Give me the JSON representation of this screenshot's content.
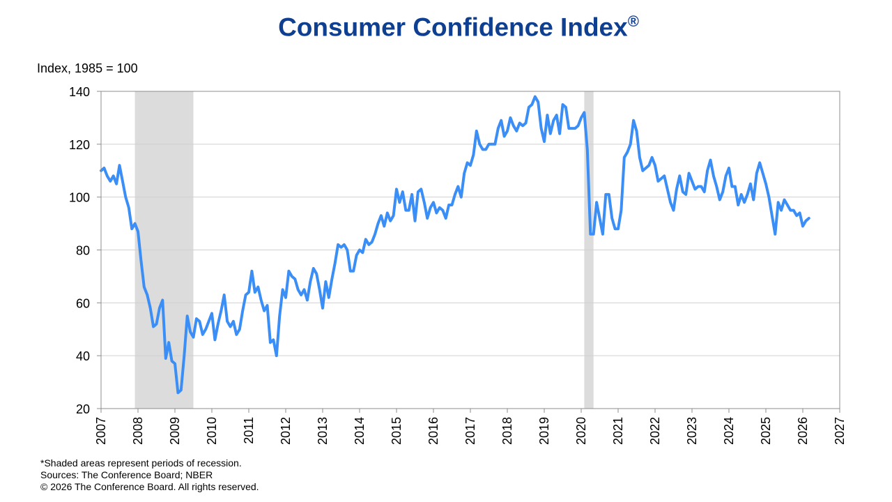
{
  "title": "Consumer Confidence Index",
  "title_mark": "®",
  "notes": [
    "*Shaded areas represent periods of recession.",
    "Sources:  The Conference Board;  NBER",
    "© 2026 The Conference Board. All rights reserved."
  ],
  "chart_data": {
    "type": "line",
    "title": "Consumer Confidence Index®",
    "ylabel": "Index, 1985 = 100",
    "xlabel": "",
    "xlim": [
      2007,
      2027
    ],
    "ylim": [
      20,
      140
    ],
    "x_ticks": [
      "2007",
      "2008",
      "2009",
      "2010",
      "2011",
      "2012",
      "2013",
      "2014",
      "2015",
      "2016",
      "2017",
      "2018",
      "2019",
      "2020",
      "2021",
      "2022",
      "2023",
      "2024",
      "2025",
      "2026",
      "2027"
    ],
    "y_ticks": [
      20,
      40,
      60,
      80,
      100,
      120,
      140
    ],
    "grid": "horizontal",
    "line_color": "#3a8ef6",
    "recession_color": "#dcdcdc",
    "recessions": [
      {
        "start": "2007-12",
        "end": "2009-06"
      },
      {
        "start": "2020-02",
        "end": "2020-04"
      }
    ],
    "series": [
      {
        "points": [
          [
            "2007-01",
            110
          ],
          [
            "2007-02",
            111
          ],
          [
            "2007-03",
            108
          ],
          [
            "2007-04",
            106
          ],
          [
            "2007-05",
            108
          ],
          [
            "2007-06",
            105
          ],
          [
            "2007-07",
            112
          ],
          [
            "2007-08",
            106
          ],
          [
            "2007-09",
            100
          ],
          [
            "2007-10",
            96
          ],
          [
            "2007-11",
            88
          ],
          [
            "2007-12",
            90
          ],
          [
            "2008-01",
            87
          ],
          [
            "2008-02",
            76
          ],
          [
            "2008-03",
            66
          ],
          [
            "2008-04",
            63
          ],
          [
            "2008-05",
            58
          ],
          [
            "2008-06",
            51
          ],
          [
            "2008-07",
            52
          ],
          [
            "2008-08",
            58
          ],
          [
            "2008-09",
            61
          ],
          [
            "2008-10",
            39
          ],
          [
            "2008-11",
            45
          ],
          [
            "2008-12",
            38
          ],
          [
            "2009-01",
            37
          ],
          [
            "2009-02",
            26
          ],
          [
            "2009-03",
            27
          ],
          [
            "2009-04",
            40
          ],
          [
            "2009-05",
            55
          ],
          [
            "2009-06",
            49
          ],
          [
            "2009-07",
            47
          ],
          [
            "2009-08",
            54
          ],
          [
            "2009-09",
            53
          ],
          [
            "2009-10",
            48
          ],
          [
            "2009-11",
            50
          ],
          [
            "2009-12",
            53
          ],
          [
            "2010-01",
            56
          ],
          [
            "2010-02",
            46
          ],
          [
            "2010-03",
            52
          ],
          [
            "2010-04",
            57
          ],
          [
            "2010-05",
            63
          ],
          [
            "2010-06",
            53
          ],
          [
            "2010-07",
            51
          ],
          [
            "2010-08",
            53
          ],
          [
            "2010-09",
            48
          ],
          [
            "2010-10",
            50
          ],
          [
            "2010-11",
            57
          ],
          [
            "2010-12",
            63
          ],
          [
            "2011-01",
            64
          ],
          [
            "2011-02",
            72
          ],
          [
            "2011-03",
            64
          ],
          [
            "2011-04",
            66
          ],
          [
            "2011-05",
            61
          ],
          [
            "2011-06",
            57
          ],
          [
            "2011-07",
            59
          ],
          [
            "2011-08",
            45
          ],
          [
            "2011-09",
            46
          ],
          [
            "2011-10",
            40
          ],
          [
            "2011-11",
            55
          ],
          [
            "2011-12",
            65
          ],
          [
            "2012-01",
            62
          ],
          [
            "2012-02",
            72
          ],
          [
            "2012-03",
            70
          ],
          [
            "2012-04",
            69
          ],
          [
            "2012-05",
            65
          ],
          [
            "2012-06",
            63
          ],
          [
            "2012-07",
            65
          ],
          [
            "2012-08",
            61
          ],
          [
            "2012-09",
            68
          ],
          [
            "2012-10",
            73
          ],
          [
            "2012-11",
            71
          ],
          [
            "2012-12",
            65
          ],
          [
            "2013-01",
            58
          ],
          [
            "2013-02",
            68
          ],
          [
            "2013-03",
            62
          ],
          [
            "2013-04",
            69
          ],
          [
            "2013-05",
            75
          ],
          [
            "2013-06",
            82
          ],
          [
            "2013-07",
            81
          ],
          [
            "2013-08",
            82
          ],
          [
            "2013-09",
            80
          ],
          [
            "2013-10",
            72
          ],
          [
            "2013-11",
            72
          ],
          [
            "2013-12",
            78
          ],
          [
            "2014-01",
            80
          ],
          [
            "2014-02",
            79
          ],
          [
            "2014-03",
            84
          ],
          [
            "2014-04",
            82
          ],
          [
            "2014-05",
            83
          ],
          [
            "2014-06",
            86
          ],
          [
            "2014-07",
            90
          ],
          [
            "2014-08",
            93
          ],
          [
            "2014-09",
            89
          ],
          [
            "2014-10",
            94
          ],
          [
            "2014-11",
            91
          ],
          [
            "2014-12",
            93
          ],
          [
            "2015-01",
            103
          ],
          [
            "2015-02",
            98
          ],
          [
            "2015-03",
            102
          ],
          [
            "2015-04",
            95
          ],
          [
            "2015-05",
            95
          ],
          [
            "2015-06",
            101
          ],
          [
            "2015-07",
            91
          ],
          [
            "2015-08",
            102
          ],
          [
            "2015-09",
            103
          ],
          [
            "2015-10",
            98
          ],
          [
            "2015-11",
            92
          ],
          [
            "2015-12",
            96
          ],
          [
            "2016-01",
            98
          ],
          [
            "2016-02",
            94
          ],
          [
            "2016-03",
            96
          ],
          [
            "2016-04",
            95
          ],
          [
            "2016-05",
            92
          ],
          [
            "2016-06",
            97
          ],
          [
            "2016-07",
            97
          ],
          [
            "2016-08",
            101
          ],
          [
            "2016-09",
            104
          ],
          [
            "2016-10",
            100
          ],
          [
            "2016-11",
            109
          ],
          [
            "2016-12",
            113
          ],
          [
            "2017-01",
            112
          ],
          [
            "2017-02",
            116
          ],
          [
            "2017-03",
            125
          ],
          [
            "2017-04",
            120
          ],
          [
            "2017-05",
            118
          ],
          [
            "2017-06",
            118
          ],
          [
            "2017-07",
            120
          ],
          [
            "2017-08",
            120
          ],
          [
            "2017-09",
            120
          ],
          [
            "2017-10",
            126
          ],
          [
            "2017-11",
            129
          ],
          [
            "2017-12",
            123
          ],
          [
            "2018-01",
            125
          ],
          [
            "2018-02",
            130
          ],
          [
            "2018-03",
            127
          ],
          [
            "2018-04",
            125
          ],
          [
            "2018-05",
            128
          ],
          [
            "2018-06",
            127
          ],
          [
            "2018-07",
            128
          ],
          [
            "2018-08",
            134
          ],
          [
            "2018-09",
            135
          ],
          [
            "2018-10",
            138
          ],
          [
            "2018-11",
            136
          ],
          [
            "2018-12",
            126
          ],
          [
            "2019-01",
            121
          ],
          [
            "2019-02",
            131
          ],
          [
            "2019-03",
            124
          ],
          [
            "2019-04",
            129
          ],
          [
            "2019-05",
            131
          ],
          [
            "2019-06",
            124
          ],
          [
            "2019-07",
            135
          ],
          [
            "2019-08",
            134
          ],
          [
            "2019-09",
            126
          ],
          [
            "2019-10",
            126
          ],
          [
            "2019-11",
            126
          ],
          [
            "2019-12",
            127
          ],
          [
            "2020-01",
            130
          ],
          [
            "2020-02",
            132
          ],
          [
            "2020-03",
            118
          ],
          [
            "2020-04",
            86
          ],
          [
            "2020-05",
            86
          ],
          [
            "2020-06",
            98
          ],
          [
            "2020-07",
            92
          ],
          [
            "2020-08",
            86
          ],
          [
            "2020-09",
            101
          ],
          [
            "2020-10",
            101
          ],
          [
            "2020-11",
            92
          ],
          [
            "2020-12",
            88
          ],
          [
            "2021-01",
            88
          ],
          [
            "2021-02",
            95
          ],
          [
            "2021-03",
            115
          ],
          [
            "2021-04",
            117
          ],
          [
            "2021-05",
            120
          ],
          [
            "2021-06",
            129
          ],
          [
            "2021-07",
            125
          ],
          [
            "2021-08",
            115
          ],
          [
            "2021-09",
            110
          ],
          [
            "2021-10",
            111
          ],
          [
            "2021-11",
            112
          ],
          [
            "2021-12",
            115
          ],
          [
            "2022-01",
            112
          ],
          [
            "2022-02",
            106
          ],
          [
            "2022-03",
            107
          ],
          [
            "2022-04",
            108
          ],
          [
            "2022-05",
            103
          ],
          [
            "2022-06",
            98
          ],
          [
            "2022-07",
            95
          ],
          [
            "2022-08",
            103
          ],
          [
            "2022-09",
            108
          ],
          [
            "2022-10",
            102
          ],
          [
            "2022-11",
            101
          ],
          [
            "2022-12",
            109
          ],
          [
            "2023-01",
            106
          ],
          [
            "2023-02",
            103
          ],
          [
            "2023-03",
            104
          ],
          [
            "2023-04",
            104
          ],
          [
            "2023-05",
            102
          ],
          [
            "2023-06",
            110
          ],
          [
            "2023-07",
            114
          ],
          [
            "2023-08",
            108
          ],
          [
            "2023-09",
            104
          ],
          [
            "2023-10",
            99
          ],
          [
            "2023-11",
            102
          ],
          [
            "2023-12",
            108
          ],
          [
            "2024-01",
            111
          ],
          [
            "2024-02",
            104
          ],
          [
            "2024-03",
            104
          ],
          [
            "2024-04",
            97
          ],
          [
            "2024-05",
            101
          ],
          [
            "2024-06",
            98
          ],
          [
            "2024-07",
            101
          ],
          [
            "2024-08",
            105
          ],
          [
            "2024-09",
            99
          ],
          [
            "2024-10",
            109
          ],
          [
            "2024-11",
            113
          ],
          [
            "2024-12",
            109
          ],
          [
            "2025-01",
            105
          ],
          [
            "2025-02",
            100
          ],
          [
            "2025-03",
            93
          ],
          [
            "2025-04",
            86
          ],
          [
            "2025-05",
            98
          ],
          [
            "2025-06",
            95
          ],
          [
            "2025-07",
            99
          ],
          [
            "2025-08",
            97
          ],
          [
            "2025-09",
            95
          ],
          [
            "2025-10",
            95
          ],
          [
            "2025-11",
            93
          ],
          [
            "2025-12",
            94
          ],
          [
            "2026-01",
            89
          ],
          [
            "2026-02",
            91
          ],
          [
            "2026-03",
            92
          ]
        ]
      }
    ]
  }
}
